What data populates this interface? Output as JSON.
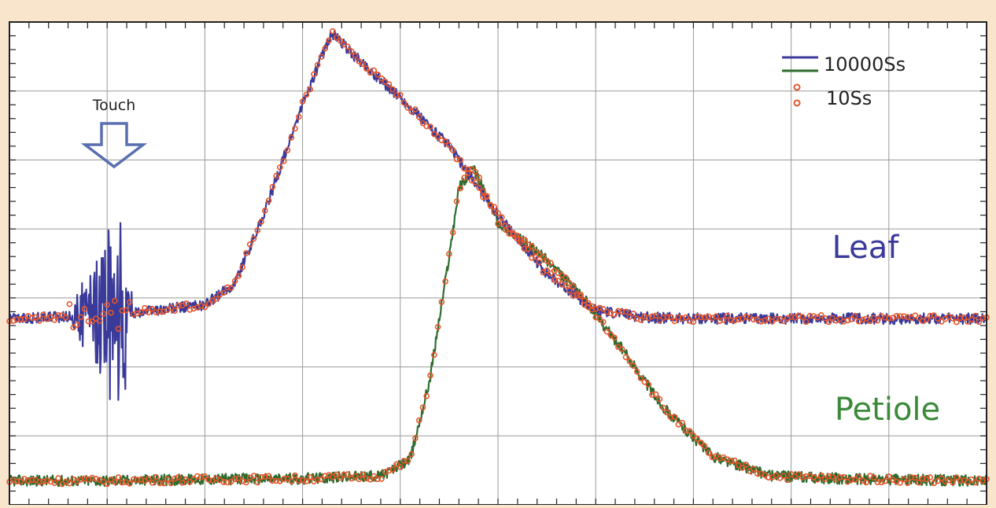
{
  "chart_data": {
    "type": "line",
    "title": "",
    "xlabel": "",
    "ylabel": "",
    "grid": true,
    "legend_placement": "top-right",
    "xlim": [
      0,
      10
    ],
    "ylim": [
      0,
      7
    ],
    "series": [
      {
        "name": "10000Ss",
        "color": "#3a3a9a",
        "points": [
          [
            0,
            2.7
          ],
          [
            0.5,
            2.72
          ],
          [
            1.0,
            2.75
          ],
          [
            1.5,
            2.82
          ],
          [
            2.0,
            2.9
          ],
          [
            2.3,
            3.2
          ],
          [
            2.6,
            4.2
          ],
          [
            3.0,
            5.8
          ],
          [
            3.3,
            6.85
          ],
          [
            3.5,
            6.55
          ],
          [
            4.0,
            5.9
          ],
          [
            4.5,
            5.2
          ],
          [
            5.0,
            4.2
          ],
          [
            5.5,
            3.35
          ],
          [
            6.0,
            2.82
          ],
          [
            6.5,
            2.72
          ],
          [
            7.0,
            2.7
          ],
          [
            8.0,
            2.7
          ],
          [
            9.0,
            2.7
          ],
          [
            10.0,
            2.7
          ]
        ]
      },
      {
        "name": "10000Ss",
        "color": "#2e6b2e",
        "points": [
          [
            0,
            0.35
          ],
          [
            1,
            0.35
          ],
          [
            2,
            0.37
          ],
          [
            3,
            0.38
          ],
          [
            3.8,
            0.42
          ],
          [
            4.1,
            0.65
          ],
          [
            4.3,
            1.8
          ],
          [
            4.5,
            3.6
          ],
          [
            4.6,
            4.6
          ],
          [
            4.75,
            4.88
          ],
          [
            5.0,
            4.1
          ],
          [
            5.5,
            3.55
          ],
          [
            5.9,
            2.95
          ],
          [
            6.3,
            2.2
          ],
          [
            6.7,
            1.4
          ],
          [
            7.2,
            0.7
          ],
          [
            7.8,
            0.42
          ],
          [
            8.5,
            0.38
          ],
          [
            10.0,
            0.35
          ]
        ]
      },
      {
        "name": "10Ss",
        "color": "#e8562a",
        "points": [
          [
            0,
            2.7
          ],
          [
            0.5,
            2.72
          ],
          [
            1.0,
            2.75
          ],
          [
            1.5,
            2.82
          ],
          [
            2.0,
            2.9
          ],
          [
            2.3,
            3.2
          ],
          [
            2.6,
            4.2
          ],
          [
            3.0,
            5.8
          ],
          [
            3.3,
            6.85
          ],
          [
            3.5,
            6.55
          ],
          [
            4.0,
            5.9
          ],
          [
            4.5,
            5.2
          ],
          [
            5.0,
            4.2
          ],
          [
            5.5,
            3.35
          ],
          [
            6.0,
            2.82
          ],
          [
            6.5,
            2.72
          ],
          [
            7.0,
            2.7
          ],
          [
            8.0,
            2.7
          ],
          [
            9.0,
            2.7
          ],
          [
            10.0,
            2.7
          ]
        ]
      },
      {
        "name": "10Ss",
        "color": "#e8562a",
        "points": [
          [
            0,
            0.35
          ],
          [
            1,
            0.35
          ],
          [
            2,
            0.37
          ],
          [
            3,
            0.38
          ],
          [
            3.8,
            0.42
          ],
          [
            4.1,
            0.65
          ],
          [
            4.3,
            1.8
          ],
          [
            4.5,
            3.6
          ],
          [
            4.6,
            4.6
          ],
          [
            4.75,
            4.88
          ],
          [
            5.0,
            4.1
          ],
          [
            5.5,
            3.55
          ],
          [
            5.9,
            2.95
          ],
          [
            6.3,
            2.2
          ],
          [
            6.7,
            1.4
          ],
          [
            7.2,
            0.7
          ],
          [
            7.8,
            0.42
          ],
          [
            8.5,
            0.38
          ],
          [
            10.0,
            0.35
          ]
        ]
      }
    ],
    "legend": [
      {
        "label": "10000Ss",
        "marker": "line",
        "colors": [
          "#3a3a9a",
          "#2e6b2e"
        ]
      },
      {
        "label": "10Ss",
        "marker": "circle",
        "colors": [
          "#e8562a"
        ]
      }
    ],
    "annotations": [
      {
        "text": "Touch",
        "type": "arrow-down",
        "x": 1.1,
        "color": "#222222",
        "arrow_color": "#5a6fb0"
      },
      {
        "text": "Leaf",
        "x": 9.05,
        "y": 3.8,
        "color": "#3a3a9a"
      },
      {
        "text": "Petiole",
        "x": 9.05,
        "y": 1.3,
        "color": "#3a8a3a"
      }
    ],
    "noise_burst": {
      "x_start": 0.6,
      "x_end": 1.25,
      "center": 2.7,
      "amplitude": 1.35
    }
  },
  "colors": {
    "background": "#f9e4cc",
    "plot_background": "#ffffff",
    "grid": "#9a9a9a",
    "frame": "#222222"
  }
}
